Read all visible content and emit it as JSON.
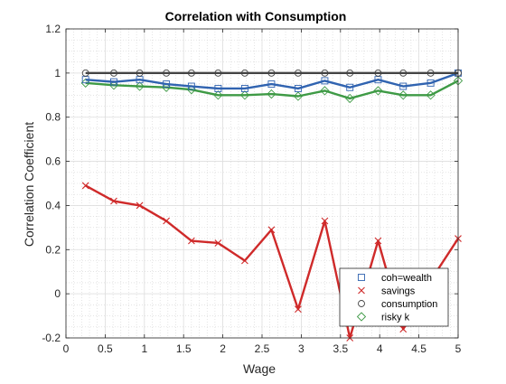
{
  "chart_data": {
    "type": "line",
    "title": "Correlation with Consumption",
    "xlabel": "Wage",
    "ylabel": "Correlation Coefficient",
    "xlim": [
      0,
      5
    ],
    "ylim": [
      -0.2,
      1.2
    ],
    "x_ticks": [
      "0",
      "0.5",
      "1",
      "1.5",
      "2",
      "2.5",
      "3",
      "3.5",
      "4",
      "4.5",
      "5"
    ],
    "y_ticks": [
      "-0.2",
      "0",
      "0.2",
      "0.4",
      "0.6",
      "0.8",
      "1",
      "1.2"
    ],
    "grid": "on (major and minor)",
    "legend_position": "bottom-right",
    "x": [
      0.25,
      0.61,
      0.94,
      1.28,
      1.6,
      1.94,
      2.28,
      2.62,
      2.96,
      3.3,
      3.62,
      3.98,
      4.3,
      4.65,
      5.0
    ],
    "series": [
      {
        "name": "coh=wealth",
        "color": "#3063b0",
        "marker": "square",
        "values": [
          0.97,
          0.96,
          0.97,
          0.95,
          0.94,
          0.93,
          0.93,
          0.95,
          0.93,
          0.965,
          0.935,
          0.97,
          0.94,
          0.955,
          1.0
        ]
      },
      {
        "name": "savings",
        "color": "#cf2a2a",
        "marker": "x",
        "values": [
          0.49,
          0.42,
          0.4,
          0.33,
          0.24,
          0.23,
          0.15,
          0.29,
          -0.07,
          0.33,
          -0.2,
          0.24,
          -0.16,
          0.06,
          0.25
        ]
      },
      {
        "name": "consumption",
        "color": "#444444",
        "marker": "circle",
        "values": [
          1,
          1,
          1,
          1,
          1,
          1,
          1,
          1,
          1,
          1,
          1,
          1,
          1,
          1,
          1
        ]
      },
      {
        "name": "risky k",
        "color": "#3e9a45",
        "marker": "diamond",
        "values": [
          0.955,
          0.945,
          0.94,
          0.935,
          0.925,
          0.9,
          0.9,
          0.905,
          0.895,
          0.92,
          0.885,
          0.92,
          0.9,
          0.9,
          0.965
        ]
      }
    ]
  }
}
